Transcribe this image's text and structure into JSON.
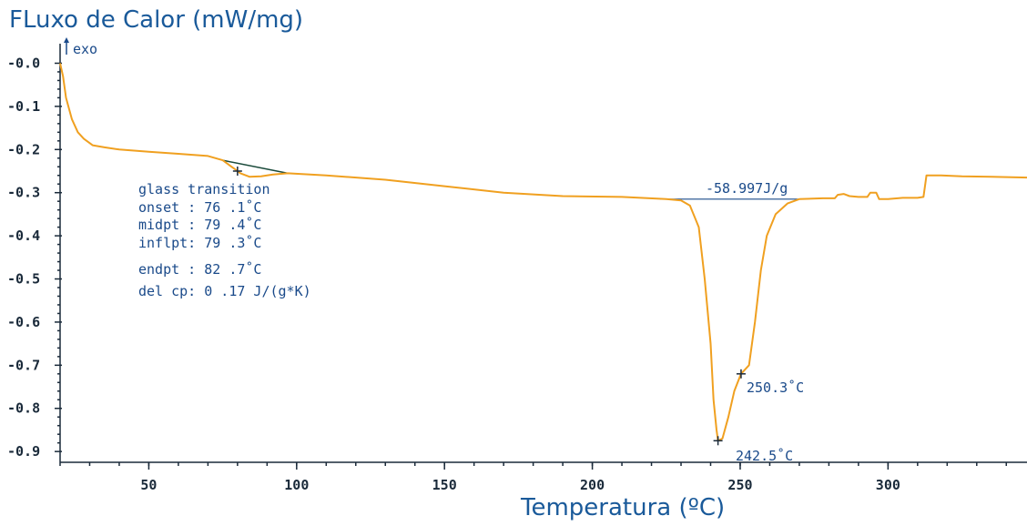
{
  "chart_data": {
    "type": "line",
    "title": "",
    "ylabel": "FLuxo de Calor (mW/mg)",
    "xlabel": "Temperatura (ºC)",
    "exo_label": "exo",
    "xlim": [
      20,
      347
    ],
    "ylim": [
      -0.925,
      0.02
    ],
    "x_ticks": [
      50,
      100,
      150,
      200,
      250,
      300
    ],
    "x_tick_labels": [
      "50",
      "100",
      "150",
      "200",
      "250",
      "300"
    ],
    "y_ticks": [
      0,
      -0.1,
      -0.2,
      -0.3,
      -0.4,
      -0.5,
      -0.6,
      -0.7,
      -0.8,
      -0.9
    ],
    "y_tick_labels": [
      "-0.0",
      "-0.1",
      "-0.2",
      "-0.3",
      "-0.4",
      "-0.5",
      "-0.6",
      "-0.7",
      "-0.8",
      "-0.9"
    ],
    "line_color": "#f0a020",
    "baseline_color": "#1a4a8a",
    "series": [
      {
        "values": [
          [
            20,
            0.0
          ],
          [
            21,
            -0.03
          ],
          [
            22,
            -0.08
          ],
          [
            24,
            -0.13
          ],
          [
            26,
            -0.16
          ],
          [
            28,
            -0.175
          ],
          [
            31,
            -0.19
          ],
          [
            35,
            -0.195
          ],
          [
            40,
            -0.2
          ],
          [
            50,
            -0.205
          ],
          [
            60,
            -0.21
          ],
          [
            70,
            -0.215
          ],
          [
            75,
            -0.225
          ],
          [
            79,
            -0.245
          ],
          [
            81,
            -0.255
          ],
          [
            84,
            -0.263
          ],
          [
            88,
            -0.262
          ],
          [
            92,
            -0.258
          ],
          [
            97,
            -0.255
          ],
          [
            110,
            -0.26
          ],
          [
            130,
            -0.27
          ],
          [
            150,
            -0.285
          ],
          [
            170,
            -0.3
          ],
          [
            190,
            -0.308
          ],
          [
            210,
            -0.31
          ],
          [
            225,
            -0.315
          ],
          [
            230,
            -0.318
          ],
          [
            233,
            -0.33
          ],
          [
            236,
            -0.38
          ],
          [
            238,
            -0.5
          ],
          [
            240,
            -0.65
          ],
          [
            241,
            -0.78
          ],
          [
            242,
            -0.85
          ],
          [
            242.5,
            -0.875
          ],
          [
            244,
            -0.87
          ],
          [
            246,
            -0.82
          ],
          [
            248,
            -0.76
          ],
          [
            250.3,
            -0.72
          ],
          [
            253,
            -0.7
          ],
          [
            255,
            -0.6
          ],
          [
            257,
            -0.48
          ],
          [
            259,
            -0.4
          ],
          [
            262,
            -0.35
          ],
          [
            266,
            -0.325
          ],
          [
            270,
            -0.315
          ],
          [
            278,
            -0.313
          ],
          [
            282,
            -0.313
          ],
          [
            283,
            -0.305
          ],
          [
            285,
            -0.303
          ],
          [
            287,
            -0.308
          ],
          [
            290,
            -0.31
          ],
          [
            293,
            -0.31
          ],
          [
            294,
            -0.3
          ],
          [
            296,
            -0.3
          ],
          [
            297,
            -0.315
          ],
          [
            300,
            -0.315
          ],
          [
            305,
            -0.312
          ],
          [
            310,
            -0.312
          ],
          [
            312,
            -0.31
          ],
          [
            313,
            -0.26
          ],
          [
            318,
            -0.26
          ],
          [
            325,
            -0.262
          ],
          [
            335,
            -0.263
          ],
          [
            347,
            -0.265
          ]
        ]
      }
    ],
    "annotations": {
      "enthalpy_label": "-58.997J/g",
      "enthalpy_baseline_x": [
        223,
        270
      ],
      "enthalpy_baseline_y": [
        -0.315,
        -0.315
      ],
      "glass_baseline_x": [
        75,
        97
      ],
      "glass_baseline_y": [
        -0.225,
        -0.255
      ],
      "glass_marker": [
        80,
        -0.25
      ],
      "peak_marker": [
        242.5,
        -0.875
      ],
      "peak_label": "242.5˚C",
      "endset_marker": [
        250.3,
        -0.72
      ],
      "endset_label": "250.3˚C",
      "glass_transition": [
        "glass transition",
        "onset :  76 .1˚C",
        "midpt :  79 .4˚C",
        "inflpt:  79 .3˚C",
        "endpt :  82 .7˚C",
        "del cp:    0 .17 J/(g*K)"
      ]
    }
  }
}
